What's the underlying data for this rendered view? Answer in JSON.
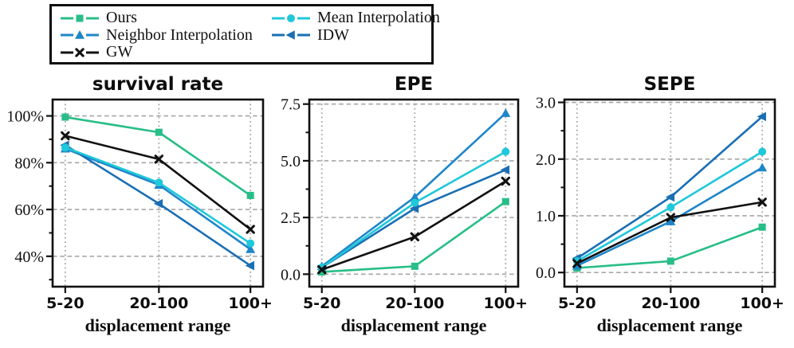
{
  "colors": {
    "background": "#ffffff",
    "axis": "#101010",
    "grid": "#a6a6a6",
    "ours_green": "#27be87",
    "neighbor_blue": "#1e86c9",
    "idw_blue": "#1a6fb4",
    "mean_cyan": "#1fc8da",
    "gw_black": "#111111"
  },
  "styles": {
    "Ours": {
      "color": "#27be87",
      "marker": "square"
    },
    "Neighbor Interpolation": {
      "color": "#1e86c9",
      "marker": "triangle-up"
    },
    "IDW": {
      "color": "#1a6fb4",
      "marker": "triangle-left"
    },
    "Mean Interpolation": {
      "color": "#1fc8da",
      "marker": "circle"
    },
    "GW": {
      "color": "#111111",
      "marker": "x"
    }
  },
  "legend": {
    "position": "top-left, outside axes, 2-column box",
    "items": [
      {
        "label": "Ours",
        "series": "Ours",
        "marker": "square",
        "column": 1
      },
      {
        "label": "Neighbor Interpolation",
        "series": "Neighbor Interpolation",
        "marker": "triangle-up",
        "column": 1
      },
      {
        "label": "GW",
        "series": "GW",
        "marker": "x",
        "column": 1
      },
      {
        "label": "Mean Interpolation",
        "series": "Mean Interpolation",
        "marker": "circle",
        "column": 2
      },
      {
        "label": "IDW",
        "series": "IDW",
        "marker": "triangle-left",
        "column": 2
      }
    ]
  },
  "chart_data": [
    {
      "type": "line",
      "title": "survival rate",
      "xlabel": "displacement range",
      "ylabel": "",
      "categories": [
        "5-20",
        "20-100",
        "100+"
      ],
      "yticks": [
        100,
        80,
        60,
        40
      ],
      "ytick_labels": [
        "100%",
        "80%",
        "60%",
        "40%"
      ],
      "ylim": [
        27,
        107
      ],
      "grid": {
        "horizontal": "dashed",
        "vertical": "dotted"
      },
      "unit": "percent",
      "series": [
        {
          "name": "Ours",
          "values": [
            99.5,
            93,
            66
          ]
        },
        {
          "name": "Neighbor Interpolation",
          "values": [
            86,
            70.5,
            43
          ]
        },
        {
          "name": "IDW",
          "values": [
            87.5,
            62.5,
            36
          ]
        },
        {
          "name": "Mean Interpolation",
          "values": [
            86.5,
            71.5,
            45.5
          ]
        },
        {
          "name": "GW",
          "values": [
            91.5,
            81.5,
            51.5
          ]
        }
      ]
    },
    {
      "type": "line",
      "title": "EPE",
      "xlabel": "displacement range",
      "ylabel": "",
      "categories": [
        "5-20",
        "20-100",
        "100+"
      ],
      "yticks": [
        7.5,
        5.0,
        2.5,
        0.0
      ],
      "ytick_labels": [
        "7.5",
        "5.0",
        "2.5",
        "0.0"
      ],
      "ylim": [
        -0.55,
        7.7
      ],
      "grid": {
        "horizontal": "dashed",
        "vertical": "dotted"
      },
      "unit": "",
      "series": [
        {
          "name": "Ours",
          "values": [
            0.1,
            0.35,
            3.2
          ]
        },
        {
          "name": "Neighbor Interpolation",
          "values": [
            0.35,
            3.4,
            7.1
          ]
        },
        {
          "name": "IDW",
          "values": [
            0.3,
            2.9,
            4.6
          ]
        },
        {
          "name": "Mean Interpolation",
          "values": [
            0.3,
            3.15,
            5.4
          ]
        },
        {
          "name": "GW",
          "values": [
            0.2,
            1.65,
            4.1
          ]
        }
      ]
    },
    {
      "type": "line",
      "title": "SEPE",
      "xlabel": "displacement range",
      "ylabel": "",
      "categories": [
        "5-20",
        "20-100",
        "100+"
      ],
      "yticks": [
        3.0,
        2.0,
        1.0,
        0.0
      ],
      "ytick_labels": [
        "3.0",
        "2.0",
        "1.0",
        "0.0"
      ],
      "ylim": [
        -0.25,
        3.05
      ],
      "grid": {
        "horizontal": "dashed",
        "vertical": "dotted"
      },
      "unit": "",
      "series": [
        {
          "name": "Ours",
          "values": [
            0.08,
            0.2,
            0.8
          ]
        },
        {
          "name": "Neighbor Interpolation",
          "values": [
            0.12,
            0.9,
            1.85
          ]
        },
        {
          "name": "IDW",
          "values": [
            0.25,
            1.33,
            2.75
          ]
        },
        {
          "name": "Mean Interpolation",
          "values": [
            0.2,
            1.15,
            2.13
          ]
        },
        {
          "name": "GW",
          "values": [
            0.16,
            0.97,
            1.24
          ]
        }
      ]
    }
  ]
}
